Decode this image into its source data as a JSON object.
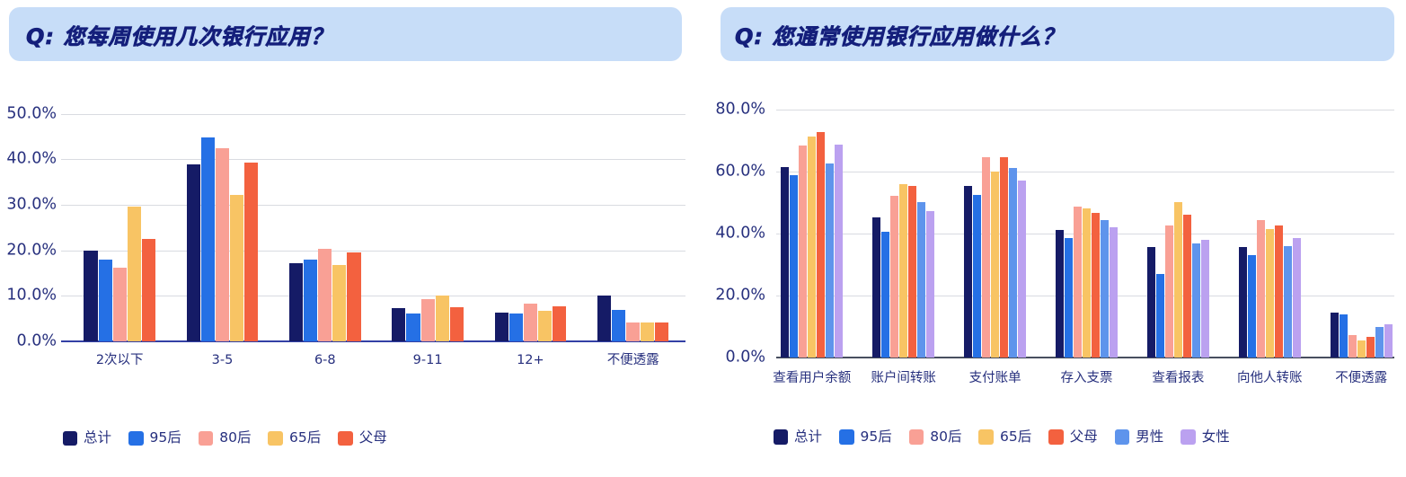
{
  "page": {
    "background_color": "#ffffff",
    "text_color": "#27307E"
  },
  "chart_data": [
    {
      "id": "weekly-usage",
      "type": "bar",
      "title": "Q: 您每周使用几次银行应用？",
      "title_color": "#141F7B",
      "header_bg": "#C7DDF8",
      "xlabel": "",
      "ylabel": "",
      "ylim": [
        0,
        50
      ],
      "ystep": 10,
      "tick_suffix": "%",
      "grid": "horizontal",
      "grid_color": "#D9DBE1",
      "axis_line_color": "#3340A5",
      "label_color": "#27307E",
      "legend_position": "bottom-left",
      "categories": [
        "2次以下",
        "3-5",
        "6-8",
        "9-11",
        "12+",
        "不便透露"
      ],
      "series": [
        {
          "name": "总计",
          "color": "#151B66",
          "values": [
            20.0,
            38.9,
            17.1,
            7.3,
            6.3,
            10.0
          ]
        },
        {
          "name": "95后",
          "color": "#2570E5",
          "values": [
            18.0,
            44.8,
            17.9,
            6.1,
            6.1,
            6.9
          ]
        },
        {
          "name": "80后",
          "color": "#F9A095",
          "values": [
            16.2,
            42.5,
            20.3,
            9.2,
            8.2,
            4.1
          ]
        },
        {
          "name": "65后",
          "color": "#F8C464",
          "values": [
            29.5,
            32.1,
            16.7,
            10.1,
            6.8,
            4.1
          ]
        },
        {
          "name": "父母",
          "color": "#F3613F",
          "values": [
            22.5,
            39.2,
            19.5,
            7.4,
            7.7,
            4.2
          ]
        }
      ]
    },
    {
      "id": "usage-purpose",
      "type": "bar",
      "title": "Q: 您通常使用银行应用做什么？",
      "title_color": "#141F7B",
      "header_bg": "#C7DDF8",
      "xlabel": "",
      "ylabel": "",
      "ylim": [
        0,
        80
      ],
      "ystep": 20,
      "tick_suffix": "%",
      "grid": "horizontal",
      "grid_color": "#D9DBE1",
      "axis_line_color": "#474E5F",
      "label_color": "#27307E",
      "legend_position": "bottom-left",
      "categories": [
        "查看用户余额",
        "账户间转账",
        "支付账单",
        "存入支票",
        "查看报表",
        "向他人转账",
        "不便透露"
      ],
      "series": [
        {
          "name": "总计",
          "color": "#151B66",
          "values": [
            61.5,
            45.2,
            55.3,
            41.3,
            35.6,
            35.6,
            14.5
          ]
        },
        {
          "name": "95后",
          "color": "#2570E5",
          "values": [
            58.9,
            40.6,
            52.5,
            38.5,
            27.0,
            33.0,
            13.9
          ]
        },
        {
          "name": "80后",
          "color": "#F9A095",
          "values": [
            68.4,
            52.2,
            64.8,
            48.7,
            42.6,
            44.4,
            7.4
          ]
        },
        {
          "name": "65后",
          "color": "#F8C464",
          "values": [
            71.3,
            56.0,
            60.0,
            48.2,
            50.2,
            41.6,
            5.6
          ]
        },
        {
          "name": "父母",
          "color": "#F3613F",
          "values": [
            72.8,
            55.4,
            64.8,
            46.8,
            46.3,
            42.6,
            6.7
          ]
        },
        {
          "name": "男性",
          "color": "#5E94EC",
          "values": [
            62.6,
            50.1,
            61.1,
            44.3,
            36.8,
            36.1,
            9.9
          ]
        },
        {
          "name": "女性",
          "color": "#BBA1F0",
          "values": [
            68.8,
            47.3,
            57.3,
            42.2,
            38.0,
            38.7,
            10.8
          ]
        }
      ]
    }
  ]
}
